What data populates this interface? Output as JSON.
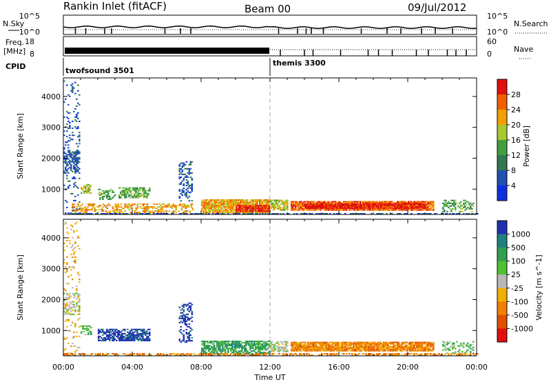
{
  "header": {
    "site": "Rankin Inlet (fitACF)",
    "beam": "Beam 00",
    "date": "09/Jul/2012"
  },
  "noise_panel": {
    "left_label": "N.Sky",
    "right_label": "N.Search",
    "left_ticks": [
      "10^5",
      "10^0"
    ],
    "right_ticks": [
      "10^5",
      "10^0"
    ]
  },
  "freq_panel": {
    "left_label_line1": "Freq.",
    "left_label_line2": "[MHz]",
    "left_ticks": [
      "18",
      "8"
    ],
    "right_label": "Nave",
    "right_ticks": [
      "60",
      "0"
    ]
  },
  "cpid": {
    "label": "CPID",
    "modes": [
      {
        "name": "twofsound 3501",
        "start_hour": 0
      },
      {
        "name": "themis 3300",
        "start_hour": 12
      }
    ]
  },
  "x_axis": {
    "label": "Time UT",
    "ticks": [
      "00:00",
      "04:00",
      "08:00",
      "12:00",
      "16:00",
      "20:00",
      "00:00"
    ],
    "range_hours": [
      0,
      24
    ]
  },
  "colors": {
    "power_scale": [
      "#1030e0",
      "#2050b0",
      "#307850",
      "#40a040",
      "#a8c830",
      "#f0a000",
      "#f06000",
      "#e01010"
    ],
    "velocity_scale": [
      "#2030b0",
      "#208080",
      "#30a050",
      "#50c030",
      "#b8b8b8",
      "#f0b000",
      "#f08000",
      "#e05000",
      "#e01010"
    ]
  },
  "chart_data": [
    {
      "type": "heatmap",
      "title": "Power",
      "ylabel": "Slant Range [km]",
      "xlabel": "",
      "yticks": [
        1000,
        2000,
        3000,
        4000
      ],
      "ylim": [
        180,
        4600
      ],
      "colorbar": {
        "label": "Power [dB]",
        "ticks": [
          "4",
          "8",
          "12",
          "16",
          "20",
          "24",
          "28"
        ],
        "range": [
          0,
          30
        ]
      },
      "series": [
        {
          "t0": 0.0,
          "t1": 0.9,
          "r0": 200,
          "r1": 4500,
          "level": 1,
          "density": 0.12
        },
        {
          "t0": 0.0,
          "t1": 0.9,
          "r0": 1500,
          "r1": 2200,
          "level": 1,
          "density": 0.5
        },
        {
          "t0": 1.0,
          "t1": 1.6,
          "r0": 850,
          "r1": 1150,
          "level": 4,
          "density": 0.6
        },
        {
          "t0": 2.0,
          "t1": 3.0,
          "r0": 650,
          "r1": 1000,
          "level": 3,
          "density": 0.5
        },
        {
          "t0": 3.2,
          "t1": 5.0,
          "r0": 700,
          "r1": 1050,
          "level": 3,
          "density": 0.6
        },
        {
          "t0": 6.7,
          "t1": 7.5,
          "r0": 600,
          "r1": 1900,
          "level": 1,
          "density": 0.35
        },
        {
          "t0": 0.5,
          "t1": 7.5,
          "r0": 220,
          "r1": 520,
          "level": 5,
          "density": 0.45
        },
        {
          "t0": 8.0,
          "t1": 12.0,
          "r0": 220,
          "r1": 650,
          "level": 5,
          "density": 0.85
        },
        {
          "t0": 10.0,
          "t1": 12.0,
          "r0": 260,
          "r1": 480,
          "level": 7,
          "density": 0.8
        },
        {
          "t0": 12.0,
          "t1": 13.0,
          "r0": 300,
          "r1": 650,
          "level": 4,
          "density": 0.7
        },
        {
          "t0": 13.2,
          "t1": 21.5,
          "r0": 300,
          "r1": 600,
          "level": 6,
          "density": 0.9
        },
        {
          "t0": 14.0,
          "t1": 21.0,
          "r0": 360,
          "r1": 540,
          "level": 7,
          "density": 0.9
        },
        {
          "t0": 22.0,
          "t1": 23.8,
          "r0": 250,
          "r1": 650,
          "level": 3,
          "density": 0.4
        },
        {
          "t0": 0.0,
          "t1": 24.0,
          "r0": 180,
          "r1": 220,
          "level": 1,
          "density": 0.6
        }
      ]
    },
    {
      "type": "heatmap",
      "title": "Velocity",
      "ylabel": "Slant Range [km]",
      "xlabel": "Time UT",
      "yticks": [
        1000,
        2000,
        3000,
        4000
      ],
      "ylim": [
        180,
        4600
      ],
      "colorbar": {
        "label": "Velocity [m s^-1]",
        "ticks": [
          "1000",
          "500",
          "100",
          "25",
          "-25",
          "-100",
          "-500",
          "-1000"
        ],
        "range": [
          -1200,
          1200
        ]
      },
      "series": [
        {
          "t0": 0.0,
          "t1": 0.9,
          "r0": 200,
          "r1": 4500,
          "level": 5,
          "density": 0.12
        },
        {
          "t0": 0.0,
          "t1": 0.9,
          "r0": 1500,
          "r1": 2200,
          "level": 4,
          "density": 0.4
        },
        {
          "t0": 1.0,
          "t1": 1.6,
          "r0": 850,
          "r1": 1150,
          "level": 3,
          "density": 0.5
        },
        {
          "t0": 2.0,
          "t1": 5.0,
          "r0": 650,
          "r1": 1050,
          "level": 0,
          "density": 0.7
        },
        {
          "t0": 6.7,
          "t1": 7.5,
          "r0": 600,
          "r1": 1900,
          "level": 0,
          "density": 0.35
        },
        {
          "t0": 8.0,
          "t1": 12.0,
          "r0": 220,
          "r1": 650,
          "level": 2,
          "density": 0.75
        },
        {
          "t0": 12.0,
          "t1": 13.0,
          "r0": 300,
          "r1": 650,
          "level": 4,
          "density": 0.6
        },
        {
          "t0": 13.2,
          "t1": 21.5,
          "r0": 320,
          "r1": 600,
          "level": 6,
          "density": 0.9
        },
        {
          "t0": 22.0,
          "t1": 23.8,
          "r0": 250,
          "r1": 650,
          "level": 3,
          "density": 0.4
        },
        {
          "t0": 0.0,
          "t1": 24.0,
          "r0": 180,
          "r1": 240,
          "level": 6,
          "density": 0.5
        }
      ]
    }
  ]
}
